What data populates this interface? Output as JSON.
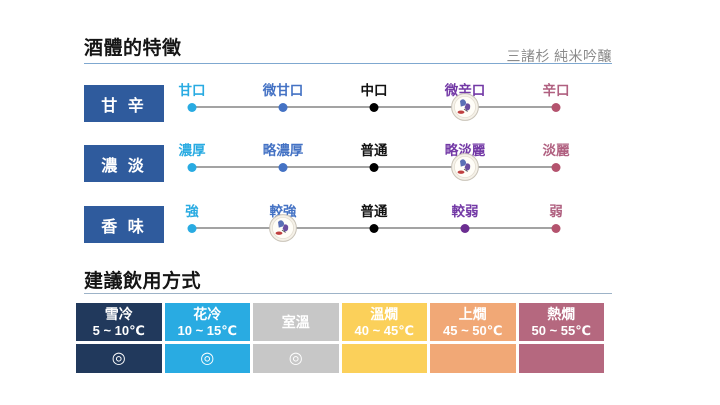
{
  "header": {
    "title": "酒體的特徵",
    "subtitle": "三諸杉 純米吟釀"
  },
  "colors": {
    "scale_box_blue": "#2F5B9D",
    "title_divider": "#7FA8D0",
    "serving_divider": "#9DB3C8",
    "track_line": "#A3A3A3"
  },
  "scales": {
    "marker_icon": "sake-seal-stamp",
    "rows": [
      {
        "id": "sweet-dry",
        "label": "甘 辛",
        "marker_index": 3,
        "stops": [
          {
            "text": "甘口",
            "label_color": "#29ABE2",
            "dot_color": "#29ABE2"
          },
          {
            "text": "微甘口",
            "label_color": "#4472C4",
            "dot_color": "#4472C4"
          },
          {
            "text": "中口",
            "label_color": "#111111",
            "dot_color": "#000000"
          },
          {
            "text": "微辛口",
            "label_color": "#7339A6",
            "dot_color": "#6B2D91"
          },
          {
            "text": "辛口",
            "label_color": "#B06080",
            "dot_color": "#B4536E"
          }
        ]
      },
      {
        "id": "rich-light",
        "label": "濃 淡",
        "marker_index": 3,
        "stops": [
          {
            "text": "濃厚",
            "label_color": "#29ABE2",
            "dot_color": "#29ABE2"
          },
          {
            "text": "略濃厚",
            "label_color": "#4472C4",
            "dot_color": "#4472C4"
          },
          {
            "text": "普通",
            "label_color": "#111111",
            "dot_color": "#000000"
          },
          {
            "text": "略淡麗",
            "label_color": "#7339A6",
            "dot_color": "#6B2D91"
          },
          {
            "text": "淡麗",
            "label_color": "#B06080",
            "dot_color": "#B4536E"
          }
        ]
      },
      {
        "id": "aroma",
        "label": "香 味",
        "marker_index": 1,
        "stops": [
          {
            "text": "強",
            "label_color": "#29ABE2",
            "dot_color": "#29ABE2"
          },
          {
            "text": "較強",
            "label_color": "#4472C4",
            "dot_color": "#4472C4"
          },
          {
            "text": "普通",
            "label_color": "#111111",
            "dot_color": "#000000"
          },
          {
            "text": "較弱",
            "label_color": "#7339A6",
            "dot_color": "#6B2D91"
          },
          {
            "text": "弱",
            "label_color": "#B06080",
            "dot_color": "#B4536E"
          }
        ]
      }
    ]
  },
  "serving": {
    "title": "建議飲用方式",
    "columns": [
      {
        "name": "雪冷",
        "temp": "5 ~ 10℃",
        "bg": "#21395C",
        "rating": "◎"
      },
      {
        "name": "花冷",
        "temp": "10 ~ 15℃",
        "bg": "#29ABE2",
        "rating": "◎"
      },
      {
        "name": "室溫",
        "temp": "",
        "bg": "#C7C7C7",
        "rating": "◎"
      },
      {
        "name": "溫燗",
        "temp": "40 ~ 45℃",
        "bg": "#FBD05A",
        "rating": ""
      },
      {
        "name": "上燗",
        "temp": "45 ~ 50℃",
        "bg": "#F1A876",
        "rating": ""
      },
      {
        "name": "熱燗",
        "temp": "50 ~ 55℃",
        "bg": "#B5687F",
        "rating": ""
      }
    ]
  },
  "chart_data": [
    {
      "type": "scatter",
      "title": "酒體的特徵",
      "subtitle": "三諸杉 純米吟釀",
      "series": [
        {
          "name": "甘辛",
          "scale": [
            "甘口",
            "微甘口",
            "中口",
            "微辛口",
            "辛口"
          ],
          "value": "微辛口",
          "value_index": 3
        },
        {
          "name": "濃淡",
          "scale": [
            "濃厚",
            "略濃厚",
            "普通",
            "略淡麗",
            "淡麗"
          ],
          "value": "略淡麗",
          "value_index": 3
        },
        {
          "name": "香味",
          "scale": [
            "強",
            "較強",
            "普通",
            "較弱",
            "弱"
          ],
          "value": "較強",
          "value_index": 1
        }
      ]
    },
    {
      "type": "table",
      "title": "建議飲用方式",
      "columns": [
        "雪冷 5~10℃",
        "花冷 10~15℃",
        "室溫",
        "溫燗 40~45℃",
        "上燗 45~50℃",
        "熱燗 50~55℃"
      ],
      "values": [
        "◎",
        "◎",
        "◎",
        "",
        "",
        ""
      ]
    }
  ]
}
